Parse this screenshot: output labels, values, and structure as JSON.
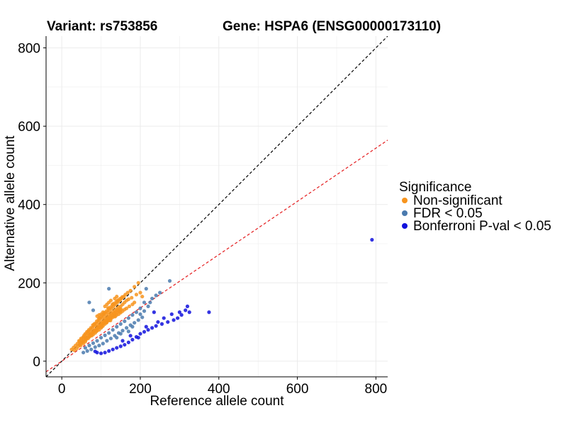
{
  "title_left": "Variant: rs753856",
  "title_right": "Gene: HSPA6 (ENSG00000173110)",
  "colors": {
    "non_significant": "#F7941D",
    "fdr": "#4A7AAE",
    "bonferroni": "#1111DD",
    "identity_line": "#000000",
    "fit_line": "#E41A1C",
    "grid": "#EBEBEB"
  },
  "chart_data": {
    "type": "scatter",
    "xlabel": "Reference allele count",
    "ylabel": "Alternative allele count",
    "xlim": [
      -40,
      830
    ],
    "ylim": [
      -40,
      830
    ],
    "x_ticks": [
      0,
      200,
      400,
      600,
      800
    ],
    "y_ticks": [
      0,
      200,
      400,
      600,
      800
    ],
    "x_tick_labels": [
      "0",
      "200",
      "400",
      "600",
      "800"
    ],
    "y_tick_labels": [
      "0",
      "200",
      "400",
      "600",
      "800"
    ],
    "grid": true,
    "legend_position": "right",
    "legend_title": "Significance",
    "reference_lines": [
      {
        "style": "dashed",
        "color": "black",
        "slope": 1.0,
        "intercept": 0
      },
      {
        "style": "dashed",
        "color": "red",
        "slope": 0.68,
        "intercept": 0
      }
    ],
    "series": [
      {
        "name": "Non-significant",
        "color_key": "non_significant",
        "points": [
          [
            25,
            30
          ],
          [
            30,
            35
          ],
          [
            32,
            28
          ],
          [
            35,
            40
          ],
          [
            38,
            32
          ],
          [
            40,
            45
          ],
          [
            42,
            38
          ],
          [
            45,
            50
          ],
          [
            46,
            42
          ],
          [
            48,
            40
          ],
          [
            50,
            55
          ],
          [
            52,
            48
          ],
          [
            54,
            60
          ],
          [
            55,
            45
          ],
          [
            56,
            52
          ],
          [
            58,
            62
          ],
          [
            60,
            55
          ],
          [
            60,
            50
          ],
          [
            62,
            68
          ],
          [
            63,
            58
          ],
          [
            65,
            60
          ],
          [
            66,
            72
          ],
          [
            68,
            64
          ],
          [
            70,
            75
          ],
          [
            70,
            62
          ],
          [
            72,
            68
          ],
          [
            73,
            80
          ],
          [
            75,
            70
          ],
          [
            76,
            65
          ],
          [
            78,
            85
          ],
          [
            78,
            72
          ],
          [
            80,
            76
          ],
          [
            80,
            68
          ],
          [
            82,
            90
          ],
          [
            83,
            78
          ],
          [
            85,
            80
          ],
          [
            85,
            72
          ],
          [
            87,
            95
          ],
          [
            88,
            82
          ],
          [
            90,
            88
          ],
          [
            90,
            78
          ],
          [
            92,
            100
          ],
          [
            93,
            85
          ],
          [
            95,
            92
          ],
          [
            95,
            80
          ],
          [
            96,
            105
          ],
          [
            98,
            90
          ],
          [
            100,
            98
          ],
          [
            100,
            85
          ],
          [
            102,
            110
          ],
          [
            103,
            95
          ],
          [
            105,
            102
          ],
          [
            105,
            90
          ],
          [
            107,
            115
          ],
          [
            108,
            100
          ],
          [
            110,
            108
          ],
          [
            110,
            95
          ],
          [
            112,
            120
          ],
          [
            113,
            105
          ],
          [
            115,
            112
          ],
          [
            115,
            100
          ],
          [
            117,
            125
          ],
          [
            118,
            110
          ],
          [
            120,
            118
          ],
          [
            120,
            104
          ],
          [
            122,
            130
          ],
          [
            123,
            114
          ],
          [
            125,
            122
          ],
          [
            125,
            108
          ],
          [
            127,
            135
          ],
          [
            128,
            118
          ],
          [
            130,
            126
          ],
          [
            130,
            112
          ],
          [
            132,
            140
          ],
          [
            133,
            122
          ],
          [
            135,
            130
          ],
          [
            135,
            115
          ],
          [
            137,
            145
          ],
          [
            138,
            126
          ],
          [
            140,
            134
          ],
          [
            140,
            118
          ],
          [
            142,
            150
          ],
          [
            143,
            130
          ],
          [
            145,
            138
          ],
          [
            145,
            120
          ],
          [
            148,
            155
          ],
          [
            148,
            132
          ],
          [
            150,
            140
          ],
          [
            150,
            124
          ],
          [
            152,
            160
          ],
          [
            155,
            145
          ],
          [
            155,
            128
          ],
          [
            158,
            165
          ],
          [
            160,
            150
          ],
          [
            160,
            132
          ],
          [
            162,
            170
          ],
          [
            165,
            155
          ],
          [
            165,
            135
          ],
          [
            168,
            175
          ],
          [
            170,
            158
          ],
          [
            172,
            140
          ],
          [
            175,
            180
          ],
          [
            178,
            162
          ],
          [
            180,
            145
          ],
          [
            185,
            190
          ],
          [
            190,
            170
          ],
          [
            195,
            200
          ],
          [
            200,
            175
          ],
          [
            205,
            165
          ],
          [
            185,
            150
          ],
          [
            55,
            62
          ],
          [
            60,
            70
          ],
          [
            62,
            56
          ],
          [
            64,
            75
          ],
          [
            67,
            58
          ],
          [
            69,
            80
          ],
          [
            71,
            64
          ],
          [
            74,
            85
          ],
          [
            77,
            70
          ],
          [
            79,
            92
          ],
          [
            81,
            74
          ],
          [
            84,
            96
          ],
          [
            86,
            78
          ],
          [
            89,
            102
          ],
          [
            91,
            84
          ],
          [
            94,
            108
          ],
          [
            97,
            88
          ],
          [
            99,
            112
          ],
          [
            101,
            92
          ],
          [
            104,
            118
          ],
          [
            106,
            96
          ],
          [
            109,
            124
          ],
          [
            111,
            100
          ],
          [
            114,
            128
          ],
          [
            116,
            104
          ],
          [
            119,
            134
          ],
          [
            121,
            108
          ],
          [
            124,
            138
          ],
          [
            126,
            112
          ],
          [
            129,
            144
          ],
          [
            131,
            116
          ],
          [
            134,
            148
          ],
          [
            136,
            120
          ],
          [
            139,
            152
          ],
          [
            141,
            124
          ],
          [
            144,
            156
          ],
          [
            146,
            128
          ],
          [
            149,
            160
          ],
          [
            151,
            132
          ],
          [
            154,
            164
          ],
          [
            44,
            52
          ],
          [
            47,
            46
          ],
          [
            49,
            58
          ],
          [
            53,
            50
          ],
          [
            57,
            66
          ],
          [
            61,
            54
          ],
          [
            67,
            76
          ],
          [
            74,
            66
          ],
          [
            82,
            94
          ],
          [
            88,
            76
          ],
          [
            96,
            110
          ],
          [
            102,
            88
          ],
          [
            108,
            122
          ],
          [
            114,
            98
          ],
          [
            118,
            136
          ],
          [
            124,
            104
          ],
          [
            130,
            146
          ],
          [
            136,
            114
          ],
          [
            142,
            154
          ],
          [
            148,
            126
          ],
          [
            90,
            115
          ],
          [
            100,
            120
          ],
          [
            110,
            140
          ],
          [
            95,
            118
          ],
          [
            105,
            125
          ],
          [
            115,
            145
          ],
          [
            120,
            150
          ],
          [
            125,
            155
          ],
          [
            135,
            160
          ],
          [
            140,
            165
          ]
        ]
      },
      {
        "name": "FDR < 0.05",
        "color_key": "fdr",
        "points": [
          [
            70,
            150
          ],
          [
            80,
            130
          ],
          [
            120,
            185
          ],
          [
            215,
            185
          ],
          [
            275,
            205
          ],
          [
            250,
            175
          ],
          [
            240,
            168
          ],
          [
            230,
            160
          ],
          [
            210,
            150
          ],
          [
            200,
            135
          ],
          [
            190,
            125
          ],
          [
            180,
            118
          ],
          [
            170,
            110
          ],
          [
            160,
            102
          ],
          [
            150,
            95
          ],
          [
            140,
            88
          ],
          [
            130,
            80
          ],
          [
            120,
            72
          ],
          [
            110,
            66
          ],
          [
            100,
            60
          ],
          [
            90,
            52
          ],
          [
            80,
            46
          ],
          [
            70,
            40
          ],
          [
            60,
            34
          ],
          [
            165,
            85
          ],
          [
            175,
            92
          ],
          [
            185,
            98
          ],
          [
            195,
            105
          ],
          [
            205,
            112
          ],
          [
            155,
            78
          ],
          [
            145,
            72
          ],
          [
            135,
            65
          ],
          [
            125,
            58
          ],
          [
            115,
            52
          ],
          [
            105,
            45
          ],
          [
            95,
            40
          ],
          [
            85,
            36
          ],
          [
            75,
            30
          ],
          [
            65,
            26
          ],
          [
            55,
            22
          ],
          [
            200,
            120
          ],
          [
            210,
            128
          ],
          [
            220,
            140
          ],
          [
            180,
            88
          ],
          [
            170,
            76
          ],
          [
            150,
            70
          ],
          [
            140,
            60
          ],
          [
            225,
            150
          ]
        ]
      },
      {
        "name": "Bonferroni P-val < 0.05",
        "color_key": "bonferroni",
        "points": [
          [
            790,
            310
          ],
          [
            375,
            125
          ],
          [
            320,
            140
          ],
          [
            315,
            130
          ],
          [
            325,
            125
          ],
          [
            305,
            118
          ],
          [
            295,
            110
          ],
          [
            285,
            105
          ],
          [
            270,
            100
          ],
          [
            255,
            95
          ],
          [
            240,
            90
          ],
          [
            230,
            85
          ],
          [
            220,
            80
          ],
          [
            210,
            75
          ],
          [
            200,
            70
          ],
          [
            190,
            62
          ],
          [
            180,
            55
          ],
          [
            170,
            48
          ],
          [
            160,
            42
          ],
          [
            150,
            38
          ],
          [
            140,
            34
          ],
          [
            130,
            30
          ],
          [
            120,
            26
          ],
          [
            110,
            22
          ],
          [
            100,
            20
          ],
          [
            90,
            22
          ],
          [
            85,
            25
          ],
          [
            235,
            125
          ],
          [
            260,
            110
          ],
          [
            280,
            120
          ],
          [
            300,
            125
          ],
          [
            245,
            100
          ],
          [
            215,
            88
          ],
          [
            195,
            60
          ],
          [
            175,
            65
          ],
          [
            155,
            52
          ]
        ]
      }
    ]
  }
}
